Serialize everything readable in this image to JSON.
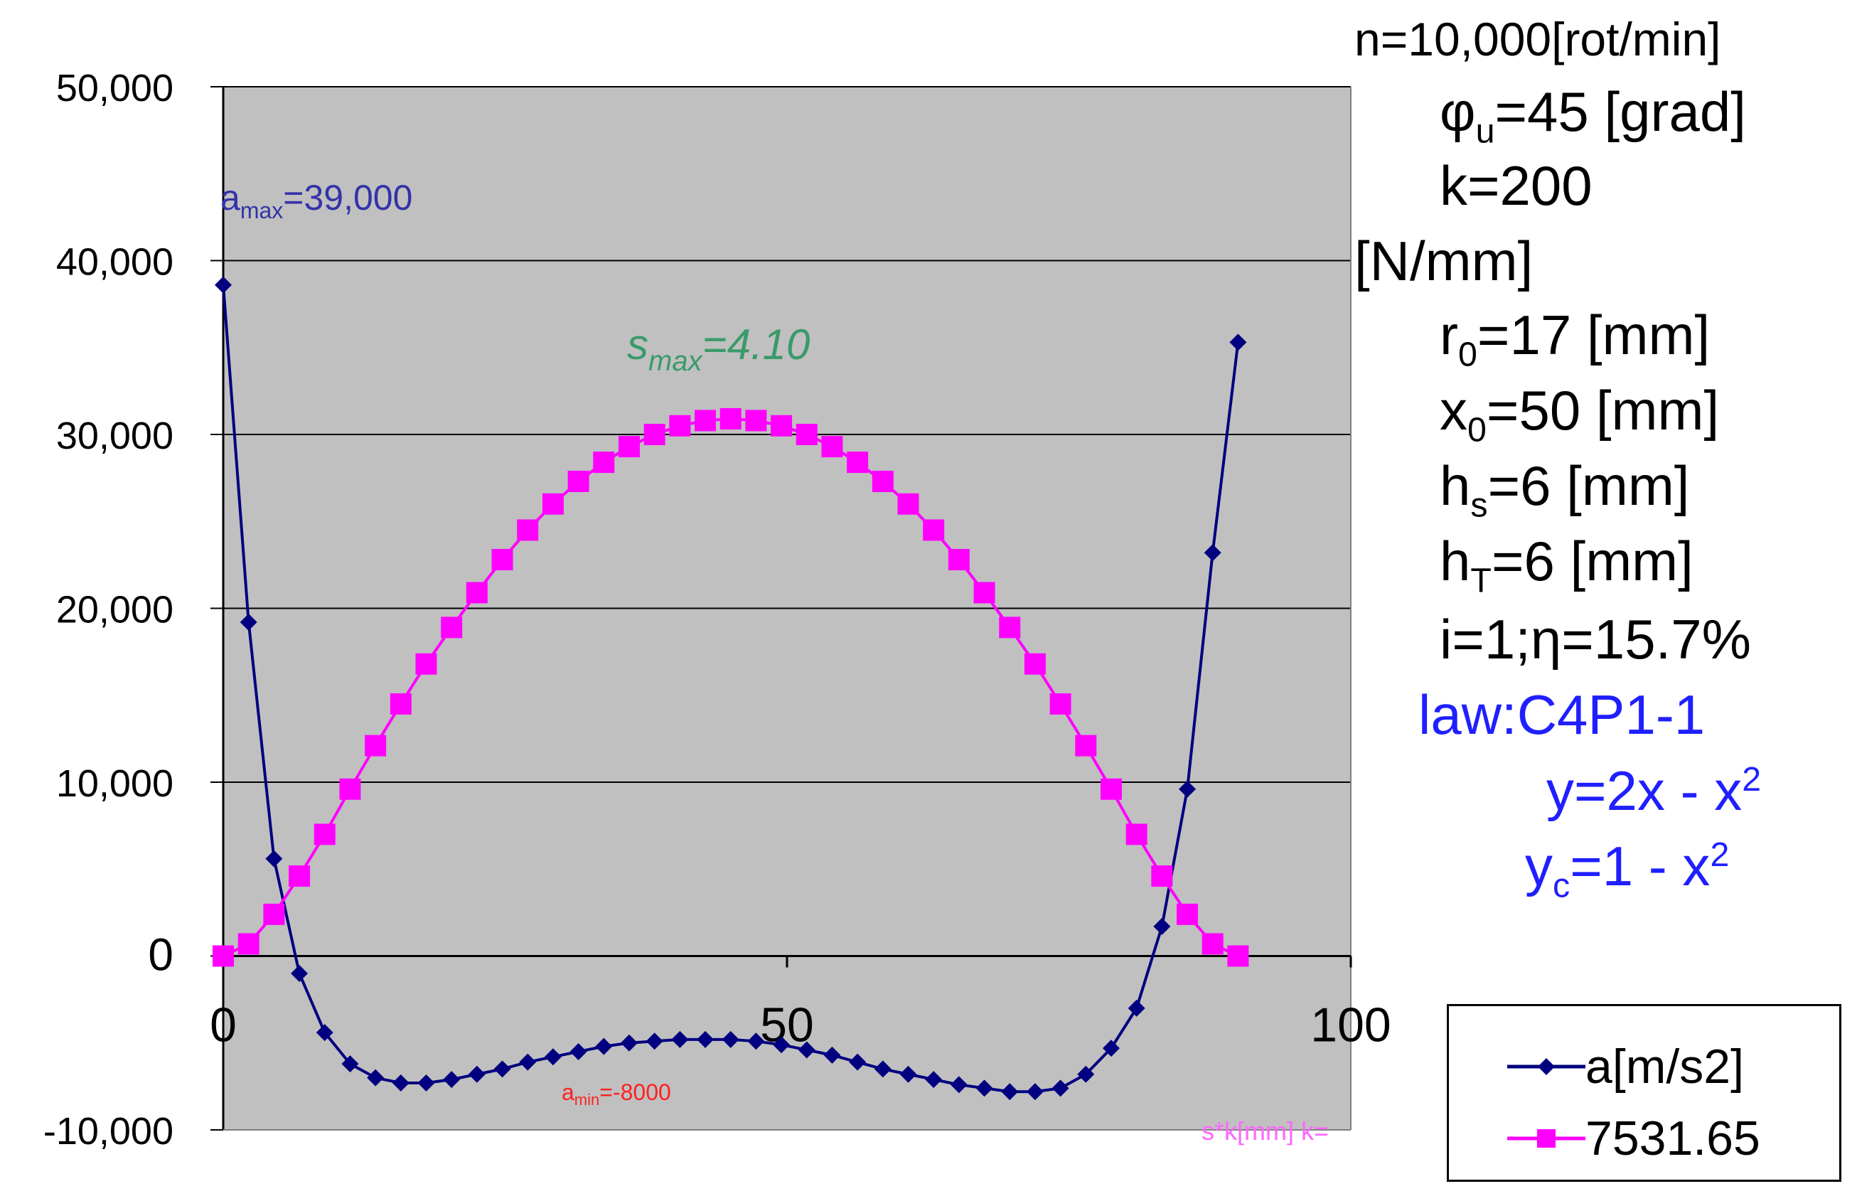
{
  "parameters": {
    "n": "n=10,000[rot/min]",
    "phi_prefix": "φ",
    "phi_sub": "u",
    "phi_suffix": "=45 [grad]",
    "k_line1": "k=200",
    "k_line2": "[N/mm]",
    "r_prefix": "r",
    "r_sub": "0",
    "r_suffix": "=17 [mm]",
    "x_prefix": "x",
    "x_sub": "0",
    "x_suffix": "=50 [mm]",
    "hs_prefix": "h",
    "hs_sub": "s",
    "hs_suffix": "=6 [mm]",
    "ht_prefix": "h",
    "ht_sub": "T",
    "ht_suffix": "=6 [mm]",
    "eta": "i=1;η=15.7%",
    "law": "law:C4P1-1",
    "y_eq_prefix": "y=2x - x",
    "y_eq_sup": "2",
    "yc_prefix": "y",
    "yc_sub": "c",
    "yc_mid": "=1 - x",
    "yc_sup": "2"
  },
  "legend": {
    "a_label": "a[m/s2]",
    "s_label": "7531.65"
  },
  "chart_data": {
    "type": "line",
    "xlim": [
      0,
      100
    ],
    "ylim": [
      -10000,
      50000
    ],
    "x_ticks": [
      "0",
      "50",
      "100"
    ],
    "y_ticks": [
      "-10,000",
      "0",
      "10,000",
      "20,000",
      "30,000",
      "40,000",
      "50,000"
    ],
    "grid": "horizontal",
    "legend_position": "bottom-right, outside plot",
    "colors": {
      "plot_bg": "#c0c0c0",
      "accel": "#000080",
      "disp": "#ff00ff",
      "smax_text": "#3a9a6a",
      "amin_text": "#ff2020"
    },
    "annotations": {
      "amax_prefix": "a",
      "amax_sub": "max",
      "amax_suffix": "=39,000",
      "smax_prefix": "s",
      "smax_sub": "max",
      "smax_suffix": "=4.10",
      "amin_prefix": "a",
      "amin_sub": "min",
      "amin_suffix": "=-8000",
      "xaxis_note": "s*k[mm] k="
    },
    "series": [
      {
        "name": "a[m/s2]",
        "marker": "diamond",
        "x": [
          0,
          2.25,
          4.5,
          6.75,
          9,
          11.25,
          13.5,
          15.75,
          18,
          20.25,
          22.5,
          24.75,
          27,
          29.25,
          31.5,
          33.75,
          36,
          38.25,
          40.5,
          42.75,
          45,
          47.25,
          49.5,
          51.75,
          54,
          56.25,
          58.5,
          60.75,
          63,
          65.25,
          67.5,
          69.75,
          72,
          74.25,
          76.5,
          78.75,
          81,
          83.25,
          85.5,
          87.75,
          90
        ],
        "y": [
          38600,
          19200,
          5600,
          -1000,
          -4400,
          -6200,
          -7000,
          -7300,
          -7300,
          -7100,
          -6800,
          -6500,
          -6100,
          -5800,
          -5500,
          -5200,
          -5000,
          -4900,
          -4800,
          -4800,
          -4800,
          -4900,
          -5100,
          -5400,
          -5700,
          -6100,
          -6500,
          -6800,
          -7100,
          -7400,
          -7600,
          -7800,
          -7800,
          -7600,
          -6800,
          -5300,
          -3000,
          1700,
          9600,
          23200,
          35300
        ]
      },
      {
        "name": "7531.65",
        "marker": "square",
        "x": [
          0,
          2.25,
          4.5,
          6.75,
          9,
          11.25,
          13.5,
          15.75,
          18,
          20.25,
          22.5,
          24.75,
          27,
          29.25,
          31.5,
          33.75,
          36,
          38.25,
          40.5,
          42.75,
          45,
          47.25,
          49.5,
          51.75,
          54,
          56.25,
          58.5,
          60.75,
          63,
          65.25,
          67.5,
          69.75,
          72,
          74.25,
          76.5,
          78.75,
          81,
          83.25,
          85.5,
          87.75,
          90
        ],
        "y": [
          0,
          700,
          2400,
          4600,
          7000,
          9600,
          12100,
          14500,
          16800,
          18900,
          20900,
          22800,
          24500,
          26000,
          27300,
          28400,
          29300,
          30000,
          30500,
          30800,
          30900,
          30800,
          30500,
          30000,
          29300,
          28400,
          27300,
          26000,
          24500,
          22800,
          20900,
          18900,
          16800,
          14500,
          12100,
          9600,
          7000,
          4600,
          2400,
          700,
          0
        ]
      }
    ]
  }
}
